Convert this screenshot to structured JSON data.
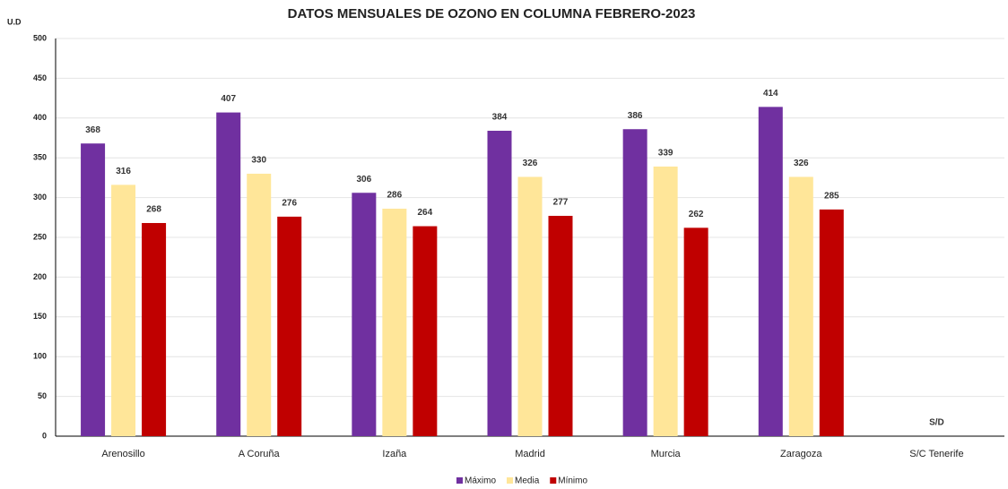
{
  "chart_data": {
    "type": "bar",
    "title": "DATOS MENSUALES DE OZONO EN COLUMNA FEBRERO-2023",
    "y_label": "U.D",
    "categories": [
      "Arenosillo",
      "A Coruña",
      "Izaña",
      "Madrid",
      "Murcia",
      "Zaragoza",
      "S/C Tenerife"
    ],
    "series": [
      {
        "name": "Máximo",
        "color": "#7030a0",
        "values": [
          368,
          407,
          306,
          384,
          386,
          414,
          null
        ]
      },
      {
        "name": "Media",
        "color": "#ffe699",
        "values": [
          316,
          330,
          286,
          326,
          339,
          326,
          null
        ]
      },
      {
        "name": "Mínimo",
        "color": "#c00000",
        "values": [
          268,
          276,
          264,
          277,
          262,
          285,
          null
        ]
      }
    ],
    "annotation": "S/D",
    "ylim": [
      0,
      500
    ],
    "yticks": [
      0,
      50,
      100,
      150,
      200,
      250,
      300,
      350,
      400,
      450,
      500
    ],
    "grid": true,
    "legend": "bottom"
  }
}
